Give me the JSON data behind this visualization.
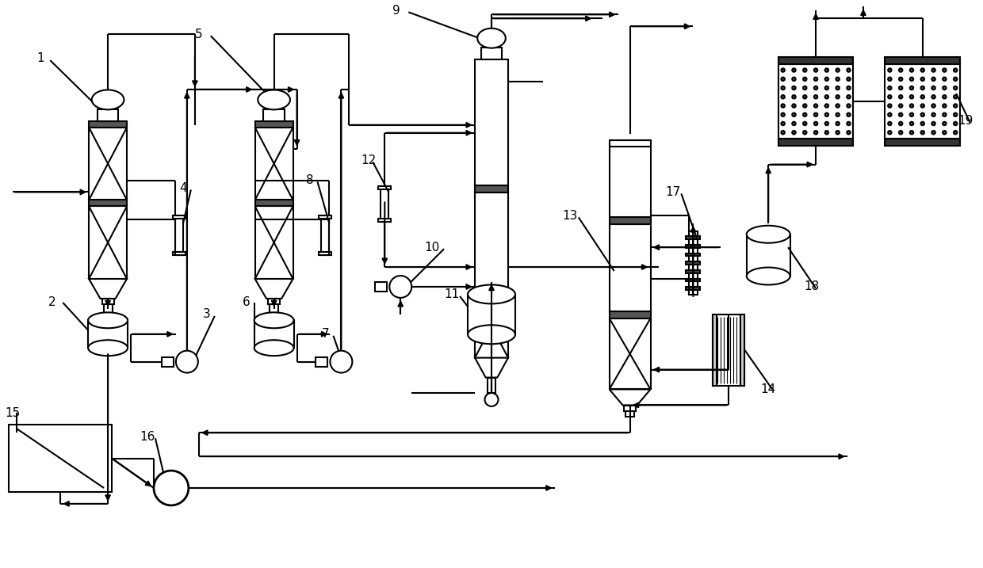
{
  "bg": "#ffffff",
  "lc": "#000000",
  "lw": 1.5,
  "figw": 12.4,
  "figh": 7.17,
  "dpi": 100,
  "xlim": [
    0,
    124
  ],
  "ylim": [
    0,
    71.7
  ]
}
